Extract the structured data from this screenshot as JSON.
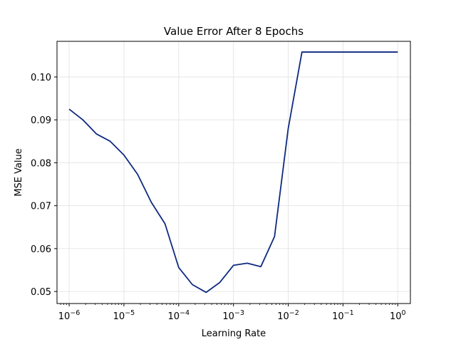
{
  "chart_data": {
    "type": "line",
    "title": "Value Error After 8 Epochs",
    "xlabel": "Learning Rate",
    "ylabel": "MSE Value",
    "x_scale": "log",
    "xlim": [
      6e-07,
      1.7
    ],
    "ylim": [
      0.0472,
      0.1083
    ],
    "grid": true,
    "colors": {
      "line": "#0e2a80",
      "grid": "#e6e6e6",
      "axes": "#000000"
    },
    "x_ticks": [
      {
        "value": 1e-06,
        "base": "10",
        "exp": "−6"
      },
      {
        "value": 1e-05,
        "base": "10",
        "exp": "−5"
      },
      {
        "value": 0.0001,
        "base": "10",
        "exp": "−4"
      },
      {
        "value": 0.001,
        "base": "10",
        "exp": "−3"
      },
      {
        "value": 0.01,
        "base": "10",
        "exp": "−2"
      },
      {
        "value": 0.1,
        "base": "10",
        "exp": "−1"
      },
      {
        "value": 1,
        "base": "10",
        "exp": "0"
      }
    ],
    "y_ticks": [
      {
        "value": 0.05,
        "label": "0.05"
      },
      {
        "value": 0.06,
        "label": "0.06"
      },
      {
        "value": 0.07,
        "label": "0.07"
      },
      {
        "value": 0.08,
        "label": "0.08"
      },
      {
        "value": 0.09,
        "label": "0.09"
      },
      {
        "value": 0.1,
        "label": "0.10"
      }
    ],
    "series": [
      {
        "x": [
          1e-06,
          1.78e-06,
          3.16e-06,
          5.62e-06,
          1e-05,
          1.78e-05,
          3.16e-05,
          5.62e-05,
          0.0001,
          0.000178,
          0.000316,
          0.000562,
          0.001,
          0.00178,
          0.00316,
          0.00562,
          0.01,
          0.0178,
          0.0316,
          0.0562,
          0.1,
          0.178,
          0.316,
          0.562,
          1
        ],
        "y": [
          0.0925,
          0.09,
          0.0867,
          0.085,
          0.0818,
          0.0773,
          0.0708,
          0.0658,
          0.0556,
          0.0516,
          0.0498,
          0.0521,
          0.0561,
          0.0566,
          0.0558,
          0.0628,
          0.088,
          0.1058,
          0.1058,
          0.1058,
          0.1058,
          0.1058,
          0.1058,
          0.1058,
          0.1058
        ]
      }
    ]
  }
}
